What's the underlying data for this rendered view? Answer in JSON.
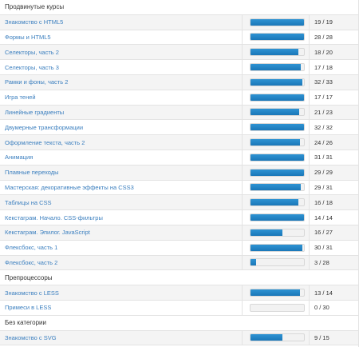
{
  "sections": [
    {
      "title": "Продвинутые курсы",
      "courses": [
        {
          "name": "Знакомство с HTML5",
          "done": 19,
          "total": 19,
          "count": "19 / 19"
        },
        {
          "name": "Формы и HTML5",
          "done": 28,
          "total": 28,
          "count": "28 / 28"
        },
        {
          "name": "Селекторы, часть 2",
          "done": 18,
          "total": 20,
          "count": "18 / 20"
        },
        {
          "name": "Селекторы, часть 3",
          "done": 17,
          "total": 18,
          "count": "17 / 18"
        },
        {
          "name": "Рамки и фоны, часть 2",
          "done": 32,
          "total": 33,
          "count": "32 / 33"
        },
        {
          "name": "Игра теней",
          "done": 17,
          "total": 17,
          "count": "17 / 17"
        },
        {
          "name": "Линейные градиенты",
          "done": 21,
          "total": 23,
          "count": "21 / 23"
        },
        {
          "name": "Двумерные трансформации",
          "done": 32,
          "total": 32,
          "count": "32 / 32"
        },
        {
          "name": "Оформление текста, часть 2",
          "done": 24,
          "total": 26,
          "count": "24 / 26"
        },
        {
          "name": "Анимация",
          "done": 31,
          "total": 31,
          "count": "31 / 31"
        },
        {
          "name": "Плавные переходы",
          "done": 29,
          "total": 29,
          "count": "29 / 29"
        },
        {
          "name": "Мастерская: декоративные эффекты на CSS3",
          "done": 29,
          "total": 31,
          "count": "29 / 31"
        },
        {
          "name": "Таблицы на CSS",
          "done": 16,
          "total": 18,
          "count": "16 / 18"
        },
        {
          "name": "Кекстаграм. Начало. CSS-фильтры",
          "done": 14,
          "total": 14,
          "count": "14 / 14"
        },
        {
          "name": "Кекстаграм. Эпилог. JavaScript",
          "done": 16,
          "total": 27,
          "count": "16 / 27"
        },
        {
          "name": "Флексбокс, часть 1",
          "done": 30,
          "total": 31,
          "count": "30 / 31"
        },
        {
          "name": "Флексбокс, часть 2",
          "done": 3,
          "total": 28,
          "count": "3 / 28"
        }
      ]
    },
    {
      "title": "Препроцессоры",
      "courses": [
        {
          "name": "Знакомство с LESS",
          "done": 13,
          "total": 14,
          "count": "13 / 14"
        },
        {
          "name": "Примеси в LESS",
          "done": 0,
          "total": 30,
          "count": "0 / 30"
        }
      ]
    },
    {
      "title": "Без категории",
      "courses": [
        {
          "name": "Знакомство с SVG",
          "done": 9,
          "total": 15,
          "count": "9 / 15"
        }
      ]
    }
  ]
}
